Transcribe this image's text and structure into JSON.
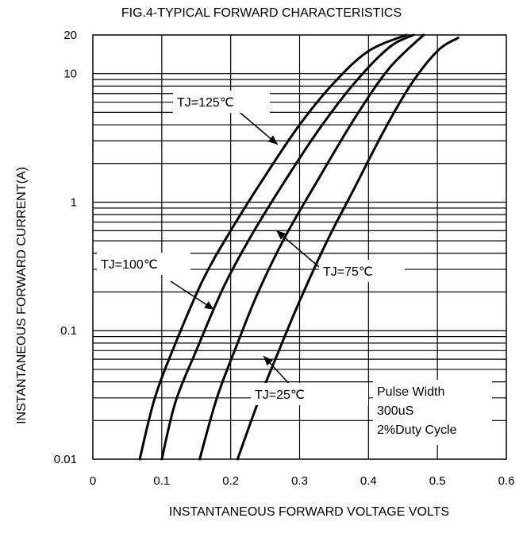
{
  "chart_data": {
    "type": "line",
    "title": "FIG.4-TYPICAL FORWARD CHARACTERISTICS",
    "xlabel": "INSTANTANEOUS FORWARD VOLTAGE VOLTS",
    "ylabel": "INSTANTANEOUS FORWARD CURRENT(A)",
    "xlim": [
      0,
      0.6
    ],
    "ylim": [
      0.01,
      20
    ],
    "yscale": "log",
    "grid": true,
    "x_ticks": [
      "0",
      "0.1",
      "0.2",
      "0.3",
      "0.4",
      "0.5",
      "0.6"
    ],
    "y_ticks": [
      "0.01",
      "0.1",
      "1",
      "10",
      "20"
    ],
    "series": [
      {
        "name": "TJ=125℃",
        "x": [
          0.068,
          0.09,
          0.12,
          0.16,
          0.2,
          0.25,
          0.3,
          0.35,
          0.4,
          0.455
        ],
        "y": [
          0.01,
          0.03,
          0.08,
          0.25,
          0.6,
          1.6,
          4.0,
          8.5,
          15.0,
          20
        ]
      },
      {
        "name": "TJ=100℃",
        "x": [
          0.1,
          0.12,
          0.15,
          0.19,
          0.23,
          0.28,
          0.33,
          0.38,
          0.43,
          0.465
        ],
        "y": [
          0.01,
          0.028,
          0.07,
          0.22,
          0.55,
          1.5,
          3.8,
          8.5,
          16.0,
          20
        ]
      },
      {
        "name": "TJ=75℃",
        "x": [
          0.155,
          0.18,
          0.21,
          0.24,
          0.28,
          0.33,
          0.38,
          0.43,
          0.48
        ],
        "y": [
          0.01,
          0.03,
          0.08,
          0.2,
          0.55,
          1.6,
          4.5,
          11.0,
          20
        ]
      },
      {
        "name": "TJ=25℃",
        "x": [
          0.21,
          0.24,
          0.27,
          0.3,
          0.34,
          0.38,
          0.42,
          0.46,
          0.5,
          0.53
        ],
        "y": [
          0.01,
          0.028,
          0.07,
          0.17,
          0.5,
          1.3,
          3.4,
          8.0,
          15.0,
          19.0
        ]
      }
    ],
    "annotations": [
      {
        "text": "TJ=125℃",
        "x": 0.35,
        "y": 6.0
      },
      {
        "text": "TJ=100℃",
        "x": 0.12,
        "y": 0.38
      },
      {
        "text": "TJ=75℃",
        "x": 0.37,
        "y": 0.31
      },
      {
        "text": "TJ=25℃",
        "x": 0.26,
        "y": 0.03
      },
      {
        "text": "Pulse Width\n300uS\n2%Duty Cycle",
        "x": 0.41,
        "y": 0.028
      }
    ],
    "colors": {
      "line": "#000000",
      "grid": "#000000",
      "background": "#ffffff"
    }
  }
}
